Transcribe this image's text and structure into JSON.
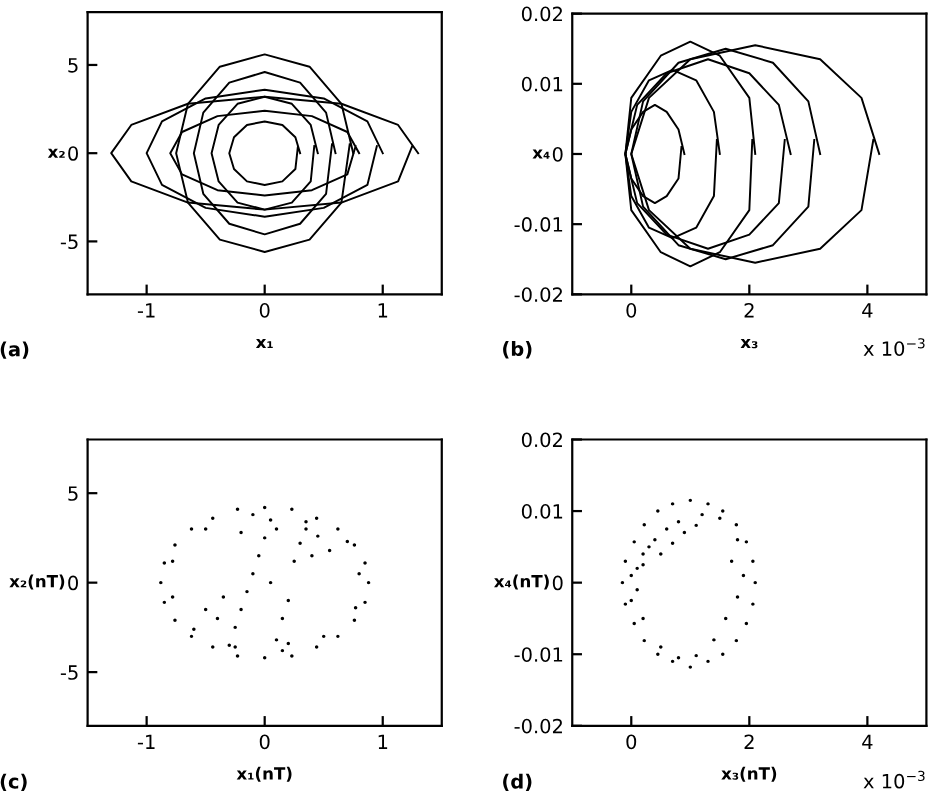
{
  "chart_data": [
    {
      "type": "line",
      "xlabel": "x₁",
      "ylabel": "x₂",
      "annotations": [
        "(a)"
      ],
      "xlim": [
        -1.5,
        1.5
      ],
      "ylim": [
        -8,
        8
      ],
      "xticks": [
        -1,
        0,
        1
      ],
      "yticks": [
        -5,
        0,
        5
      ],
      "grid": false,
      "line_style": "solid",
      "series": [
        {
          "color": "#000000",
          "x": [
            1.3,
            1.13,
            0.65,
            0,
            -0.65,
            -1.13,
            -1.3,
            -1.13,
            -0.65,
            0,
            0.65,
            1.13,
            1.25
          ],
          "values": [
            0,
            1.6,
            2.8,
            3.2,
            2.8,
            1.6,
            0,
            -1.6,
            -2.8,
            -3.2,
            -2.8,
            -1.6,
            0.4
          ]
        },
        {
          "color": "#000000",
          "x": [
            1,
            0.87,
            0.5,
            0,
            -0.5,
            -0.87,
            -1,
            -0.87,
            -0.5,
            0,
            0.5,
            0.87,
            0.95
          ],
          "values": [
            0,
            1.8,
            3.1,
            3.6,
            3.1,
            1.8,
            0,
            -1.8,
            -3.1,
            -3.6,
            -3.1,
            -1.8,
            0.4
          ]
        },
        {
          "color": "#000000",
          "x": [
            0.75,
            0.65,
            0.38,
            0,
            -0.38,
            -0.65,
            -0.75,
            -0.65,
            -0.38,
            0,
            0.38,
            0.65,
            0.72
          ],
          "values": [
            0,
            2.8,
            4.9,
            5.6,
            4.9,
            2.8,
            0,
            -2.8,
            -4.9,
            -5.6,
            -4.9,
            -2.8,
            0.5
          ]
        },
        {
          "color": "#000000",
          "x": [
            0.6,
            0.52,
            0.3,
            0,
            -0.3,
            -0.52,
            -0.6,
            -0.52,
            -0.3,
            0,
            0.3,
            0.52,
            0.57
          ],
          "values": [
            0,
            2.3,
            4,
            4.6,
            4,
            2.3,
            0,
            -2.3,
            -4,
            -4.6,
            -4,
            -2.3,
            0.5
          ]
        },
        {
          "color": "#000000",
          "x": [
            0.45,
            0.39,
            0.23,
            0,
            -0.23,
            -0.39,
            -0.45,
            -0.39,
            -0.23,
            0,
            0.23,
            0.39,
            0.42
          ],
          "values": [
            0,
            1.6,
            2.8,
            3.2,
            2.8,
            1.6,
            0,
            -1.6,
            -2.8,
            -3.2,
            -2.8,
            -1.6,
            0.4
          ]
        },
        {
          "color": "#000000",
          "x": [
            0.3,
            0.26,
            0.15,
            0,
            -0.15,
            -0.26,
            -0.3,
            -0.26,
            -0.15,
            0,
            0.15,
            0.26,
            0.28
          ],
          "values": [
            0,
            0.9,
            1.6,
            1.8,
            1.6,
            0.9,
            0,
            -0.9,
            -1.6,
            -1.8,
            -1.6,
            -0.9,
            0.3
          ]
        },
        {
          "color": "#000000",
          "x": [
            0.8,
            0.7,
            0.4,
            0,
            -0.4,
            -0.7,
            -0.8,
            -0.7,
            -0.4,
            0,
            0.4,
            0.7,
            0.77
          ],
          "values": [
            0,
            1.2,
            2.1,
            2.4,
            2.1,
            1.2,
            0,
            -1.2,
            -2.1,
            -2.4,
            -2.1,
            -1.2,
            0.4
          ]
        }
      ]
    },
    {
      "type": "line",
      "xlabel": "x₃",
      "ylabel": "x₄",
      "annotations": [
        "(b)",
        "x 10$^{−3}$"
      ],
      "xlim": [
        -1,
        5
      ],
      "ylim": [
        -0.02,
        0.02
      ],
      "xticks": [
        0,
        2,
        4
      ],
      "yticks": [
        -0.02,
        -0.01,
        0,
        0.01,
        0.02
      ],
      "grid": false,
      "line_style": "solid",
      "series": [
        {
          "color": "#000000",
          "x": [
            4.2,
            3.9,
            3.2,
            2.1,
            1.0,
            0.3,
            0,
            0.3,
            1.0,
            2.1,
            3.2,
            3.9,
            4.1
          ],
          "values": [
            0,
            0.008,
            0.0135,
            0.0155,
            0.0135,
            0.008,
            0,
            -0.008,
            -0.0135,
            -0.0155,
            -0.0135,
            -0.008,
            0.002
          ]
        },
        {
          "color": "#000000",
          "x": [
            3.2,
            3.0,
            2.4,
            1.6,
            0.8,
            0.2,
            0,
            0.2,
            0.8,
            1.6,
            2.4,
            3.0,
            3.1
          ],
          "values": [
            0,
            0.0075,
            0.013,
            0.015,
            0.013,
            0.0075,
            0,
            -0.0075,
            -0.013,
            -0.015,
            -0.013,
            -0.0075,
            0.002
          ]
        },
        {
          "color": "#000000",
          "x": [
            2.7,
            2.5,
            2.0,
            1.3,
            0.6,
            0.1,
            -0.1,
            0.1,
            0.6,
            1.3,
            2.0,
            2.5,
            2.6
          ],
          "values": [
            0,
            0.007,
            0.0115,
            0.0135,
            0.0115,
            0.007,
            0,
            -0.007,
            -0.0115,
            -0.0135,
            -0.0115,
            -0.007,
            0.002
          ]
        },
        {
          "color": "#000000",
          "x": [
            2.1,
            2.0,
            1.5,
            1.0,
            0.5,
            0,
            -0.1,
            0,
            0.5,
            1.0,
            1.5,
            2.0,
            2.05
          ],
          "values": [
            0,
            0.008,
            0.014,
            0.016,
            0.014,
            0.008,
            0,
            -0.008,
            -0.014,
            -0.016,
            -0.014,
            -0.008,
            0.002
          ]
        },
        {
          "color": "#000000",
          "x": [
            1.5,
            1.4,
            1.1,
            0.7,
            0.3,
            0,
            -0.1,
            0,
            0.3,
            0.7,
            1.1,
            1.4,
            1.45
          ],
          "values": [
            0,
            0.006,
            0.0105,
            0.012,
            0.0105,
            0.006,
            0,
            -0.006,
            -0.0105,
            -0.012,
            -0.0105,
            -0.006,
            0.002
          ]
        },
        {
          "color": "#000000",
          "x": [
            0.9,
            0.8,
            0.6,
            0.4,
            0.2,
            0,
            -0.1,
            0,
            0.2,
            0.4,
            0.6,
            0.8,
            0.85
          ],
          "values": [
            0,
            0.0035,
            0.006,
            0.007,
            0.006,
            0.0035,
            0,
            -0.0035,
            -0.006,
            -0.007,
            -0.006,
            -0.0035,
            0.001
          ]
        }
      ]
    },
    {
      "type": "scatter",
      "xlabel": "x₁(nT)",
      "ylabel": "x₂(nT)",
      "annotations": [
        "(c)"
      ],
      "xlim": [
        -1.5,
        1.5
      ],
      "ylim": [
        -8,
        8
      ],
      "xticks": [
        -1,
        0,
        1
      ],
      "yticks": [
        -5,
        0,
        5
      ],
      "grid": false,
      "marker": "circle",
      "series": [
        {
          "color": "#000000",
          "x": [
            0.88,
            0.85,
            0.76,
            0.62,
            0.44,
            0.23,
            0,
            -0.23,
            -0.44,
            -0.62,
            -0.76,
            -0.85,
            -0.88,
            -0.85,
            -0.76,
            -0.62,
            -0.44,
            -0.23,
            0,
            0.23,
            0.44,
            0.62,
            0.76,
            0.85,
            0.8,
            0.7,
            0.35,
            -0.1,
            -0.5,
            -0.78,
            -0.78,
            -0.6,
            -0.25,
            0.15,
            0.5,
            0.77,
            -0.3,
            -0.25,
            -0.2,
            -0.15,
            -0.1,
            -0.05,
            0,
            0.05,
            0.1,
            0.15,
            0.2,
            0.05,
            0.25,
            0.3,
            0.35,
            0.4,
            -0.4,
            -0.35,
            0.45,
            0.55,
            -0.5,
            0.1,
            -0.2,
            0.2
          ],
          "values": [
            0,
            1.1,
            2.1,
            3,
            3.6,
            4.1,
            4.2,
            4.1,
            3.6,
            3,
            2.1,
            1.1,
            0,
            -1.1,
            -2.1,
            -3,
            -3.6,
            -4.1,
            -4.2,
            -4.1,
            -3.6,
            -3,
            -2.1,
            -1.1,
            0.5,
            2.3,
            3.4,
            3.8,
            3,
            1.2,
            -0.8,
            -2.6,
            -3.6,
            -3.8,
            -3,
            -1.4,
            -3.5,
            -2.5,
            -1.5,
            -0.5,
            0.5,
            1.5,
            2.5,
            3.5,
            -3.2,
            -2,
            -1,
            0,
            1.2,
            2.2,
            3,
            1.5,
            -2,
            -0.8,
            2.6,
            1.8,
            -1.5,
            3,
            2.8,
            -3.4
          ]
        }
      ]
    },
    {
      "type": "scatter",
      "xlabel": "x₃(nT)",
      "ylabel": "x₄(nT)",
      "annotations": [
        "(d)",
        "x 10$^{−3}$"
      ],
      "xlim": [
        -1,
        5
      ],
      "ylim": [
        -0.02,
        0.02
      ],
      "xticks": [
        0,
        2,
        4
      ],
      "yticks": [
        -0.02,
        -0.01,
        0,
        0.01,
        0.02
      ],
      "grid": false,
      "marker": "circle",
      "series": [
        {
          "color": "#000000",
          "x": [
            2.1,
            2.06,
            1.95,
            1.78,
            1.55,
            1.3,
            1.0,
            0.7,
            0.45,
            0.22,
            0.05,
            -0.1,
            -0.15,
            -0.1,
            0.05,
            0.22,
            0.45,
            0.7,
            1.0,
            1.3,
            1.55,
            1.78,
            1.95,
            2.06,
            0.1,
            0.2,
            0.4,
            0.6,
            0.8,
            0.3,
            0.5,
            0.7,
            0.9,
            1.1,
            0,
            0.1,
            0.2,
            1.2,
            1.5,
            1.8,
            1.7,
            1.9,
            1.8,
            1.6,
            1.4,
            0.5,
            0.8,
            1.1,
            0,
            0.2
          ],
          "values": [
            0,
            0.003,
            0.0057,
            0.0081,
            0.01,
            0.011,
            0.0115,
            0.011,
            0.01,
            0.0081,
            0.0057,
            0.003,
            0,
            -0.003,
            -0.0057,
            -0.0081,
            -0.01,
            -0.011,
            -0.0118,
            -0.011,
            -0.01,
            -0.0081,
            -0.0057,
            -0.003,
            0.002,
            0.004,
            0.006,
            0.0075,
            0.0085,
            0.005,
            0.004,
            0.0055,
            0.007,
            0.008,
            0.001,
            -0.001,
            0.0025,
            0.0095,
            0.009,
            0.006,
            0.003,
            0.001,
            -0.002,
            -0.005,
            -0.008,
            -0.009,
            -0.0105,
            -0.0102,
            -0.0025,
            -0.005
          ]
        }
      ]
    }
  ]
}
